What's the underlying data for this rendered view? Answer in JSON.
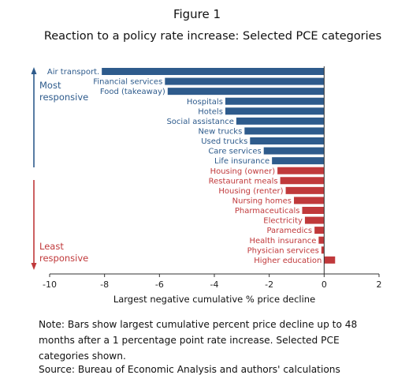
{
  "header": {
    "figure_label": "Figure 1",
    "title": "Reaction to a policy rate increase: Selected PCE categories"
  },
  "chart_data": {
    "type": "bar",
    "orientation": "horizontal",
    "xlabel": "Largest negative cumulative % price decline",
    "xlim": [
      -10,
      2
    ],
    "xticks": [
      -10,
      -8,
      -6,
      -4,
      -2,
      0,
      2
    ],
    "grid": false,
    "legend": "none",
    "colors": {
      "most_responsive": "#2e5b8c",
      "least_responsive": "#c0393b"
    },
    "annotations": {
      "top_label": [
        "Most",
        "responsive"
      ],
      "bottom_label": [
        "Least",
        "responsive"
      ]
    },
    "categories": [
      "Air transport.",
      "Financial services",
      "Food (takeaway)",
      "Hospitals",
      "Hotels",
      "Social assistance",
      "New trucks",
      "Used trucks",
      "Care services",
      "Life insurance",
      "Housing (owner)",
      "Restaurant meals",
      "Housing (renter)",
      "Nursing homes",
      "Pharmaceuticals",
      "Electricity",
      "Paramedics",
      "Health insurance",
      "Physician services",
      "Higher education"
    ],
    "values": [
      -8.1,
      -5.8,
      -5.7,
      -3.6,
      -3.6,
      -3.2,
      -2.9,
      -2.7,
      -2.2,
      -1.9,
      -1.7,
      -1.6,
      -1.4,
      -1.1,
      -0.8,
      -0.7,
      -0.35,
      -0.2,
      -0.1,
      0.4
    ],
    "group": [
      "most",
      "most",
      "most",
      "most",
      "most",
      "most",
      "most",
      "most",
      "most",
      "most",
      "least",
      "least",
      "least",
      "least",
      "least",
      "least",
      "least",
      "least",
      "least",
      "least"
    ]
  },
  "note": {
    "text": "Note: Bars show largest cumulative percent price decline up to 48 months after a 1 percentage point rate increase. Selected PCE categories shown.",
    "source": "Source: Bureau of Economic Analysis and authors' calculations"
  }
}
